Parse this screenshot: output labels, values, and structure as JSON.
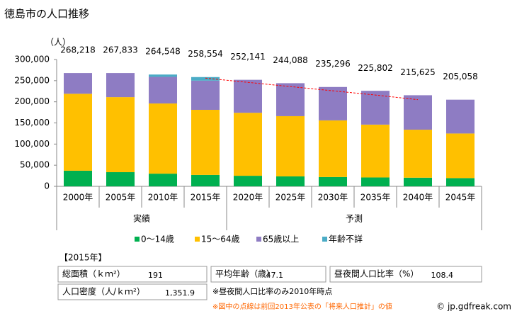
{
  "chart_data": {
    "type": "bar",
    "stacked": true,
    "title": "徳島市の人口推移",
    "y_axis_label": "（人）",
    "categories": [
      "2000年",
      "2005年",
      "2010年",
      "2015年",
      "2020年",
      "2025年",
      "2030年",
      "2035年",
      "2040年",
      "2045年"
    ],
    "groups": [
      {
        "label": "実績",
        "span": [
          0,
          3
        ]
      },
      {
        "label": "予測",
        "span": [
          4,
          9
        ]
      }
    ],
    "series": [
      {
        "name": "0〜14歳",
        "color": "#00b050",
        "values": [
          37000,
          33500,
          30000,
          27000,
          25000,
          23500,
          22000,
          21000,
          20500,
          19500
        ]
      },
      {
        "name": "15〜64歳",
        "color": "#ffc000",
        "values": [
          182000,
          177500,
          166000,
          154000,
          149000,
          142500,
          134000,
          125000,
          113500,
          105500
        ]
      },
      {
        "name": "65歳以上",
        "color": "#8e7cc3",
        "values": [
          49000,
          57000,
          63000,
          69000,
          78000,
          78000,
          79000,
          80000,
          81500,
          80000
        ]
      },
      {
        "name": "年齢不詳",
        "color": "#4bacc6",
        "values": [
          0,
          0,
          5500,
          8500,
          0,
          0,
          0,
          0,
          0,
          0
        ]
      }
    ],
    "totals": {
      "values": [
        268218,
        267833,
        264548,
        258554,
        252141,
        244088,
        235296,
        225802,
        215625,
        205058
      ],
      "value_labels": [
        "268,218",
        "267,833",
        "264,548",
        "258,554",
        "252,141",
        "244,088",
        "235,296",
        "225,802",
        "215,625",
        "205,058"
      ]
    },
    "previous_projection": {
      "color": "#ff0000",
      "values": [
        null,
        null,
        null,
        256000,
        246000,
        236000,
        226000,
        216000,
        205000,
        null
      ]
    },
    "ylim": [
      0,
      300000
    ],
    "yticks": [
      0,
      {
        "value": 50000,
        "label": "50,000"
      },
      {
        "value": 100000,
        "label": "100,000"
      },
      {
        "value": 150000,
        "label": "150,000"
      },
      {
        "value": 200000,
        "label": "200,000"
      },
      {
        "value": 250000,
        "label": "250,000"
      },
      {
        "value": 300000,
        "label": "300,000"
      }
    ],
    "legend": "bottom"
  },
  "info": {
    "heading": "【2015年】",
    "items": [
      {
        "label": "総面積（ｋｍ²）",
        "value": "191"
      },
      {
        "label": "平均年齢（歳）",
        "value": "47.1"
      },
      {
        "label": "昼夜間人口比率（%）",
        "value": "108.4"
      },
      {
        "label": "人口密度（人/ｋｍ²）",
        "value": "1,351.9"
      }
    ],
    "notes": [
      "※昼夜間人口比率のみ2010年時点",
      "※図中の点線は前回2013年公表の「将来人口推計」の値"
    ],
    "credit": "© jp.gdfreak.com"
  }
}
